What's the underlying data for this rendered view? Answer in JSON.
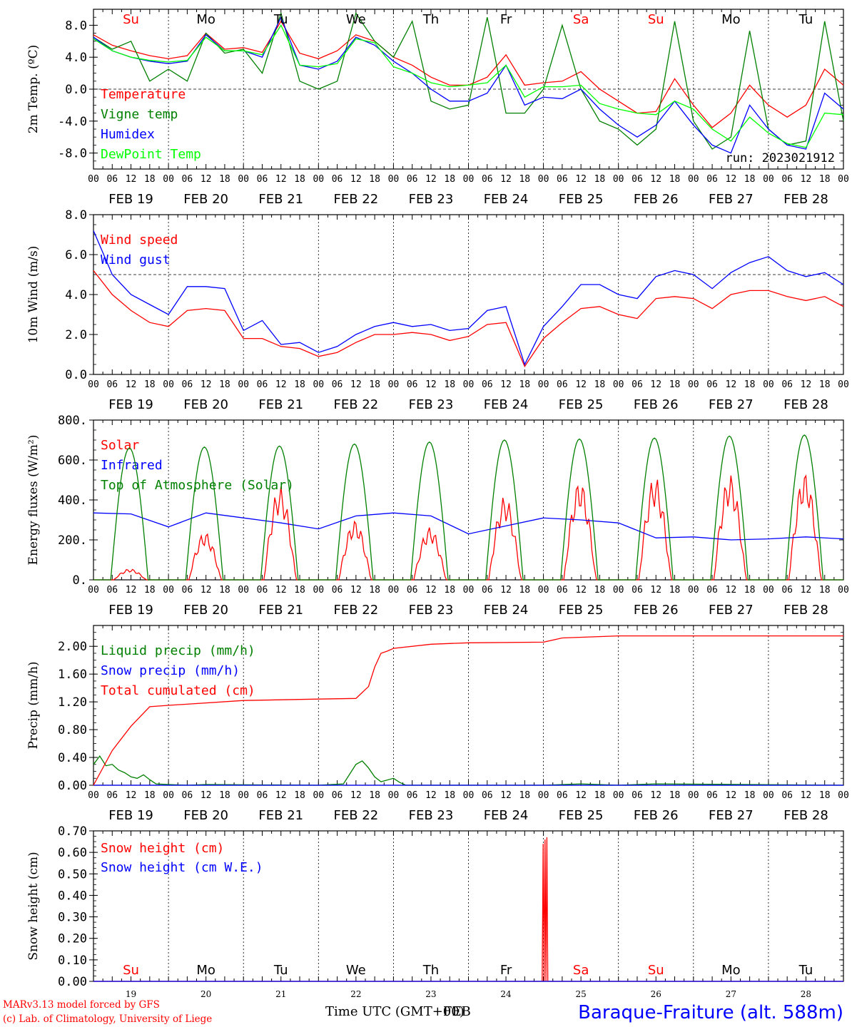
{
  "meta": {
    "credit_line1": "MARv3.13 model forced by GFS",
    "credit_line2": "(c) Lab. of Climatology, University of Liege",
    "x_title": "Time UTC (GMT+00)",
    "x_title_overlap": "FEB",
    "station": "Baraque-Fraiture (alt. 588m)"
  },
  "colors": {
    "red": "#ff0000",
    "dark_green": "#008000",
    "blue": "#0000ff",
    "light_green": "#00ff00",
    "grid": "#000000"
  },
  "axis": {
    "day_ticks": [
      "00",
      "06",
      "12",
      "18"
    ],
    "end_tick": "00",
    "date_labels": [
      "FEB 19",
      "FEB 20",
      "FEB 21",
      "FEB 22",
      "FEB 23",
      "FEB 24",
      "FEB 25",
      "FEB 26",
      "FEB 27",
      "FEB 28"
    ],
    "weekdays": [
      "Su",
      "Mo",
      "Tu",
      "We",
      "Th",
      "Fr",
      "Sa",
      "Su",
      "Mo",
      "Tu"
    ],
    "weekday_colors": [
      "red",
      "black",
      "black",
      "black",
      "black",
      "black",
      "red",
      "red",
      "black",
      "black"
    ],
    "day_numbers": [
      "19",
      "20",
      "21",
      "22",
      "23",
      "24",
      "25",
      "26",
      "27",
      "28"
    ]
  },
  "chart_data": [
    {
      "type": "line",
      "ylabel": "2m Temp. (ºC)",
      "ylim": [
        -10,
        10
      ],
      "yticks": [
        -8,
        -4,
        0,
        4,
        8
      ],
      "ytick_labels": [
        "-8.0",
        "-4.0",
        "0.0",
        "4.0",
        "8.0"
      ],
      "ref_line": 0,
      "annotation": "run: 2023021912",
      "x_hours": [
        0,
        6,
        12,
        18,
        24,
        30,
        36,
        42,
        48,
        54,
        60,
        66,
        72,
        78,
        84,
        90,
        96,
        102,
        108,
        114,
        120,
        126,
        132,
        138,
        144,
        150,
        156,
        162,
        168,
        174,
        180,
        186,
        192,
        198,
        204,
        210,
        216,
        222,
        228,
        234,
        240
      ],
      "series": [
        {
          "name": "Temperature",
          "color": "red",
          "values": [
            6.8,
            5.5,
            4.8,
            4.2,
            3.8,
            4.2,
            7.0,
            5.0,
            5.2,
            4.6,
            8.5,
            4.5,
            3.8,
            4.8,
            6.8,
            6.0,
            4.0,
            3.0,
            1.5,
            0.5,
            0.5,
            1.5,
            4.3,
            0.5,
            0.8,
            1.0,
            2.2,
            0.0,
            -1.5,
            -3.0,
            -2.8,
            1.3,
            -2.0,
            -4.8,
            -3.0,
            0.5,
            -2.0,
            -3.5,
            -2.0,
            2.5,
            0.5
          ]
        },
        {
          "name": "Vigne temp",
          "color": "dark_green",
          "values": [
            6.5,
            5.0,
            6.0,
            1.0,
            2.5,
            1.0,
            7.0,
            4.5,
            5.0,
            2.0,
            9.5,
            1.0,
            0.0,
            1.0,
            9.5,
            6.0,
            4.0,
            8.5,
            -1.5,
            -2.5,
            -2.0,
            9.0,
            -3.0,
            -3.0,
            0.0,
            8.0,
            0.0,
            -4.0,
            -5.0,
            -7.0,
            -5.0,
            8.5,
            -4.0,
            -7.5,
            -6.0,
            7.3,
            -5.0,
            -7.0,
            -6.5,
            8.5,
            -4.0
          ]
        },
        {
          "name": "Humidex",
          "color": "blue",
          "values": [
            6.5,
            4.8,
            4.0,
            3.5,
            3.2,
            3.5,
            6.8,
            4.8,
            4.8,
            4.0,
            9.0,
            3.0,
            2.5,
            3.5,
            6.5,
            5.5,
            3.5,
            2.0,
            0.0,
            -1.5,
            -1.5,
            -0.5,
            3.0,
            -2.0,
            -1.0,
            -1.2,
            0.0,
            -2.5,
            -4.5,
            -6.0,
            -4.5,
            -1.5,
            -4.5,
            -7.0,
            -8.0,
            -2.0,
            -5.0,
            -7.0,
            -7.5,
            -0.5,
            -2.5
          ]
        },
        {
          "name": "DewPoint Temp",
          "color": "light_green",
          "values": [
            6.3,
            4.8,
            4.0,
            3.6,
            3.4,
            3.6,
            6.5,
            4.8,
            4.8,
            4.3,
            8.0,
            3.0,
            2.8,
            3.2,
            6.3,
            5.8,
            2.8,
            2.0,
            0.8,
            0.3,
            0.5,
            0.8,
            3.0,
            -1.0,
            0.3,
            0.3,
            0.5,
            -1.8,
            -2.5,
            -3.0,
            -3.2,
            -1.5,
            -2.5,
            -5.0,
            -6.5,
            -3.5,
            -5.5,
            -6.8,
            -7.3,
            -3.0,
            -3.2
          ]
        }
      ]
    },
    {
      "type": "line",
      "ylabel": "10m Wind (m/s)",
      "ylim": [
        0,
        8
      ],
      "yticks": [
        0,
        2,
        4,
        6,
        8
      ],
      "ytick_labels": [
        "0.0",
        "2.0",
        "4.0",
        "6.0",
        "8.0"
      ],
      "ref_line": 5,
      "x_hours": [
        0,
        6,
        12,
        18,
        24,
        30,
        36,
        42,
        48,
        54,
        60,
        66,
        72,
        78,
        84,
        90,
        96,
        102,
        108,
        114,
        120,
        126,
        132,
        138,
        144,
        150,
        156,
        162,
        168,
        174,
        180,
        186,
        192,
        198,
        204,
        210,
        216,
        222,
        228,
        234,
        240
      ],
      "series": [
        {
          "name": "Wind speed",
          "color": "red",
          "values": [
            5.2,
            4.0,
            3.2,
            2.6,
            2.4,
            3.2,
            3.3,
            3.2,
            1.8,
            1.8,
            1.4,
            1.3,
            0.9,
            1.1,
            1.6,
            2.0,
            2.0,
            2.1,
            2.0,
            1.7,
            1.9,
            2.5,
            2.6,
            0.4,
            1.8,
            2.6,
            3.3,
            3.4,
            3.0,
            2.8,
            3.8,
            3.9,
            3.8,
            3.3,
            4.0,
            4.2,
            4.2,
            3.9,
            3.7,
            3.9,
            3.4
          ]
        },
        {
          "name": "Wind gust",
          "color": "blue",
          "values": [
            7.2,
            5.0,
            4.0,
            3.5,
            3.0,
            4.4,
            4.4,
            4.3,
            2.2,
            2.7,
            1.5,
            1.6,
            1.1,
            1.4,
            2.0,
            2.4,
            2.6,
            2.4,
            2.5,
            2.2,
            2.3,
            3.2,
            3.4,
            0.5,
            2.4,
            3.4,
            4.5,
            4.5,
            4.0,
            3.8,
            4.9,
            5.2,
            5.0,
            4.3,
            5.1,
            5.6,
            5.9,
            5.2,
            4.9,
            5.1,
            4.5
          ]
        }
      ]
    },
    {
      "type": "line",
      "ylabel": "Energy fluxes (W/m²)",
      "ylim": [
        0,
        800
      ],
      "yticks": [
        0,
        200,
        400,
        600,
        800
      ],
      "ytick_labels": [
        "0.",
        "200.",
        "400.",
        "600.",
        "800."
      ],
      "series": [
        {
          "name": "Solar",
          "color": "red",
          "day_peaks": [
            55,
            240,
            470,
            300,
            265,
            420,
            500,
            520,
            530,
            540
          ]
        },
        {
          "name": "Infrared",
          "color": "blue",
          "x_hours": [
            0,
            12,
            24,
            36,
            48,
            60,
            72,
            84,
            96,
            108,
            120,
            132,
            144,
            156,
            168,
            180,
            192,
            204,
            216,
            228,
            240
          ],
          "values": [
            335,
            330,
            265,
            335,
            310,
            285,
            255,
            320,
            335,
            320,
            230,
            270,
            310,
            300,
            285,
            210,
            215,
            200,
            205,
            215,
            205
          ]
        },
        {
          "name": "Top of Atmosphere (Solar)",
          "color": "dark_green",
          "day_peaks": [
            660,
            665,
            670,
            680,
            690,
            700,
            705,
            710,
            720,
            725
          ]
        }
      ]
    },
    {
      "type": "line",
      "ylabel": "Precip (mm/h)",
      "ylim": [
        0,
        2.3
      ],
      "yticks": [
        0,
        0.4,
        0.8,
        1.2,
        1.6,
        2.0
      ],
      "ytick_labels": [
        "0.00",
        "0.40",
        "0.80",
        "1.20",
        "1.60",
        "2.00"
      ],
      "series": [
        {
          "name": "Liquid precip (mm/h)",
          "color": "dark_green",
          "x_hours": [
            0,
            2,
            4,
            6,
            8,
            10,
            12,
            14,
            16,
            18,
            20,
            24,
            30,
            36,
            72,
            80,
            84,
            86,
            88,
            90,
            92,
            96,
            98,
            100,
            108,
            144,
            156,
            168,
            180,
            240
          ],
          "values": [
            0.3,
            0.42,
            0.28,
            0.3,
            0.22,
            0.18,
            0.12,
            0.1,
            0.15,
            0.08,
            0.02,
            0.01,
            0.0,
            0.01,
            0.0,
            0.02,
            0.3,
            0.35,
            0.25,
            0.12,
            0.05,
            0.1,
            0.04,
            0.0,
            0.0,
            0.0,
            0.02,
            0.0,
            0.02,
            0.0
          ]
        },
        {
          "name": "Snow precip (mm/h)",
          "color": "blue",
          "x_hours": [
            0,
            240
          ],
          "values": [
            0,
            0
          ]
        },
        {
          "name": "Total cumulated (cm)",
          "color": "red",
          "x_hours": [
            0,
            6,
            12,
            18,
            24,
            48,
            72,
            84,
            88,
            90,
            92,
            94,
            96,
            108,
            120,
            144,
            150,
            168,
            240
          ],
          "values": [
            0.0,
            0.5,
            0.85,
            1.13,
            1.15,
            1.22,
            1.24,
            1.25,
            1.42,
            1.7,
            1.9,
            1.93,
            1.97,
            2.03,
            2.05,
            2.06,
            2.12,
            2.15,
            2.15
          ]
        }
      ]
    },
    {
      "type": "line",
      "ylabel": "Snow height (cm)",
      "ylim": [
        0,
        0.7
      ],
      "yticks": [
        0,
        0.1,
        0.2,
        0.3,
        0.4,
        0.5,
        0.6,
        0.7
      ],
      "ytick_labels": [
        "0.00",
        "0.10",
        "0.20",
        "0.30",
        "0.40",
        "0.50",
        "0.60",
        "0.70"
      ],
      "series": [
        {
          "name": "Snow height (cm)",
          "color": "red",
          "x_hours": [
            0,
            143.6,
            143.9,
            144.2,
            144.5,
            144.8,
            145.1,
            145.4,
            240
          ],
          "values": [
            0,
            0,
            0.64,
            0,
            0.66,
            0,
            0.67,
            0,
            0
          ]
        },
        {
          "name": "Snow height (cm W.E.)",
          "color": "blue",
          "x_hours": [
            0,
            240
          ],
          "values": [
            0,
            0
          ]
        }
      ]
    }
  ]
}
